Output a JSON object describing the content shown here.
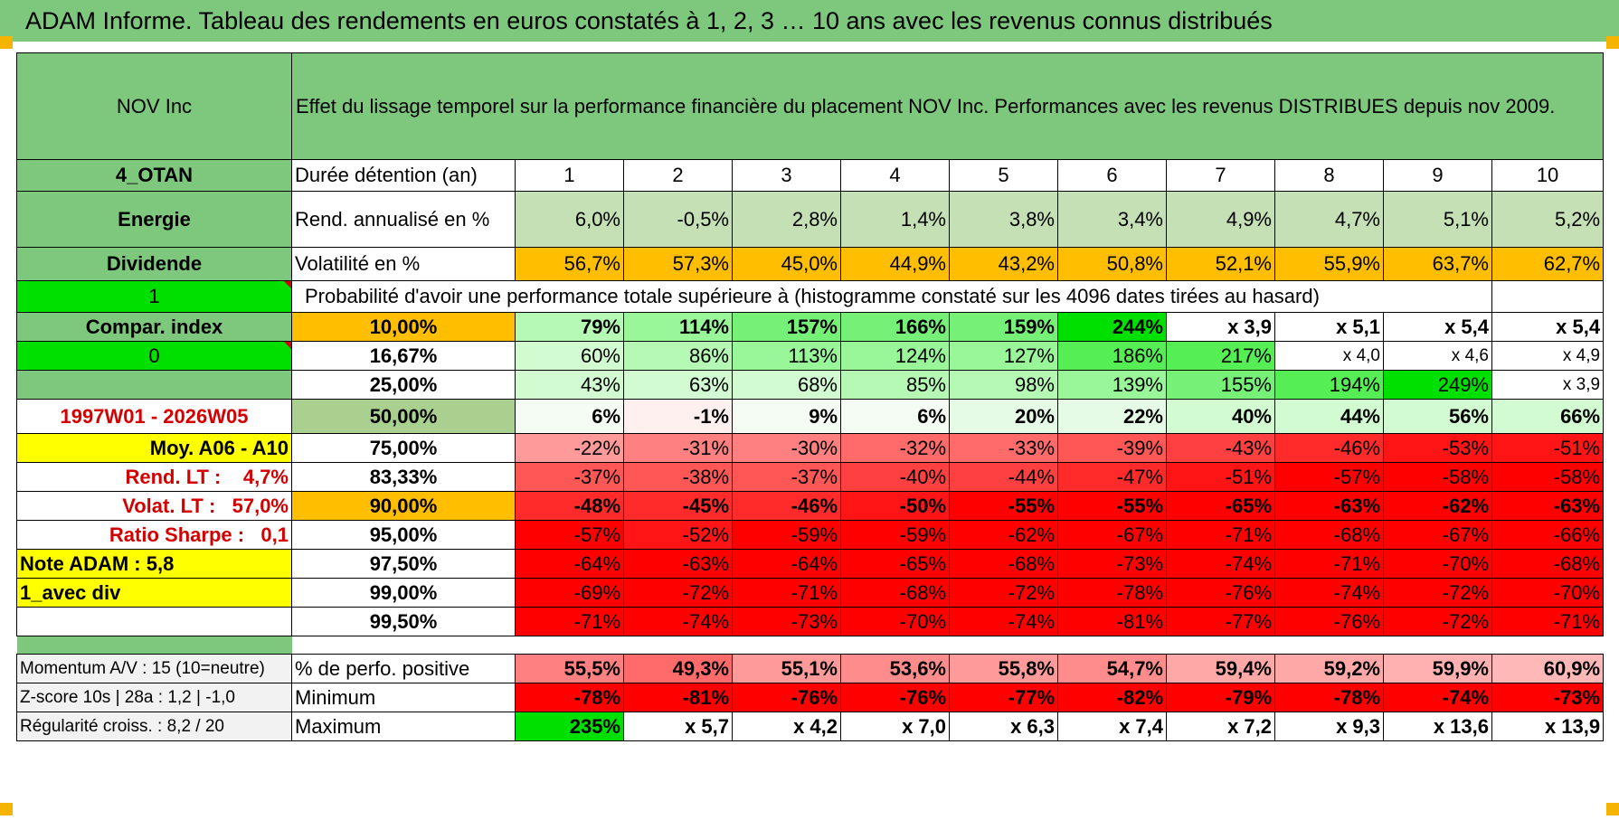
{
  "banner": {
    "title": "ADAM Informe. Tableau des rendements en euros constatés à 1, 2, 3 … 10 ans avec les revenus connus distribués"
  },
  "header": {
    "fund": "NOV Inc",
    "description": "Effet du lissage temporel sur la performance financière du placement NOV Inc. Performances avec les revenus DISTRIBUES depuis nov 2009."
  },
  "left_labels": {
    "code": "4_OTAN",
    "sector": "Energie",
    "mode": "Dividende",
    "one": "1",
    "compar": "Compar. index",
    "zero": "0",
    "period": "1997W01 - 2026W05",
    "moy": "Moy. A06 - A10",
    "rend_lt_label": "Rend. LT :",
    "rend_lt_value": "4,7%",
    "volat_lt_label": "Volat. LT :",
    "volat_lt_value": "57,0%",
    "sharpe_label": "Ratio Sharpe :",
    "sharpe_value": "0,1",
    "note": "Note ADAM : 5,8",
    "avec_div": "1_avec div"
  },
  "row_labels": {
    "duration": "Durée détention (an)",
    "rend": "Rend. annualisé en %",
    "vol": "Volatilité en %",
    "prob": "Probabilité d'avoir une performance totale supérieure à (histogramme constaté sur les 4096 dates tirées au hasard)"
  },
  "years": [
    "1",
    "2",
    "3",
    "4",
    "5",
    "6",
    "7",
    "8",
    "9",
    "10"
  ],
  "rend": [
    "6,0%",
    "-0,5%",
    "2,8%",
    "1,4%",
    "3,8%",
    "3,4%",
    "4,9%",
    "4,7%",
    "5,1%",
    "5,2%"
  ],
  "vol": [
    "56,7%",
    "57,3%",
    "45,0%",
    "44,9%",
    "43,2%",
    "50,8%",
    "52,1%",
    "55,9%",
    "63,7%",
    "62,7%"
  ],
  "prob_rows": [
    {
      "t": "10,00%",
      "v": [
        "79%",
        "114%",
        "157%",
        "166%",
        "159%",
        "244%",
        "x 3,9",
        "x 5,1",
        "x 5,4",
        "x 5,4"
      ]
    },
    {
      "t": "16,67%",
      "v": [
        "60%",
        "86%",
        "113%",
        "124%",
        "127%",
        "186%",
        "217%",
        "x 4,0",
        "x 4,6",
        "x 4,9"
      ]
    },
    {
      "t": "25,00%",
      "v": [
        "43%",
        "63%",
        "68%",
        "85%",
        "98%",
        "139%",
        "155%",
        "194%",
        "249%",
        "x 3,9"
      ]
    },
    {
      "t": "50,00%",
      "v": [
        "6%",
        "-1%",
        "9%",
        "6%",
        "20%",
        "22%",
        "40%",
        "44%",
        "56%",
        "66%"
      ]
    },
    {
      "t": "75,00%",
      "v": [
        "-22%",
        "-31%",
        "-30%",
        "-32%",
        "-33%",
        "-39%",
        "-43%",
        "-46%",
        "-53%",
        "-51%"
      ]
    },
    {
      "t": "83,33%",
      "v": [
        "-37%",
        "-38%",
        "-37%",
        "-40%",
        "-44%",
        "-47%",
        "-51%",
        "-57%",
        "-58%",
        "-58%"
      ]
    },
    {
      "t": "90,00%",
      "v": [
        "-48%",
        "-45%",
        "-46%",
        "-50%",
        "-55%",
        "-55%",
        "-65%",
        "-63%",
        "-62%",
        "-63%"
      ]
    },
    {
      "t": "95,00%",
      "v": [
        "-57%",
        "-52%",
        "-59%",
        "-59%",
        "-62%",
        "-67%",
        "-71%",
        "-68%",
        "-67%",
        "-66%"
      ]
    },
    {
      "t": "97,50%",
      "v": [
        "-64%",
        "-63%",
        "-64%",
        "-65%",
        "-68%",
        "-73%",
        "-74%",
        "-71%",
        "-70%",
        "-68%"
      ]
    },
    {
      "t": "99,00%",
      "v": [
        "-69%",
        "-72%",
        "-71%",
        "-68%",
        "-72%",
        "-78%",
        "-76%",
        "-74%",
        "-72%",
        "-70%"
      ]
    },
    {
      "t": "99,50%",
      "v": [
        "-71%",
        "-74%",
        "-73%",
        "-70%",
        "-74%",
        "-81%",
        "-77%",
        "-76%",
        "-72%",
        "-71%"
      ]
    }
  ],
  "stats": [
    {
      "left": "Momentum A/V : 15 (10=neutre)",
      "label": "% de perfo. positive",
      "v": [
        "55,5%",
        "49,3%",
        "55,1%",
        "53,6%",
        "55,8%",
        "54,7%",
        "59,4%",
        "59,2%",
        "59,9%",
        "60,9%"
      ]
    },
    {
      "left": "Z-score 10s | 28a : 1,2 | -1,0",
      "label": "Minimum",
      "v": [
        "-78%",
        "-81%",
        "-76%",
        "-76%",
        "-77%",
        "-82%",
        "-79%",
        "-78%",
        "-74%",
        "-73%"
      ]
    },
    {
      "left": "Régularité croiss. : 8,2 / 20",
      "label": "Maximum",
      "v": [
        "235%",
        "x 5,7",
        "x 4,2",
        "x 7,0",
        "x 6,3",
        "x 7,4",
        "x 7,2",
        "x 9,3",
        "x 13,6",
        "x 13,9"
      ]
    }
  ],
  "colors": {
    "header_green": "#7ec87e",
    "bright_green": "#00e000",
    "orange": "#ffbf00",
    "yellow": "#ffff00",
    "red_text": "#d40000"
  }
}
